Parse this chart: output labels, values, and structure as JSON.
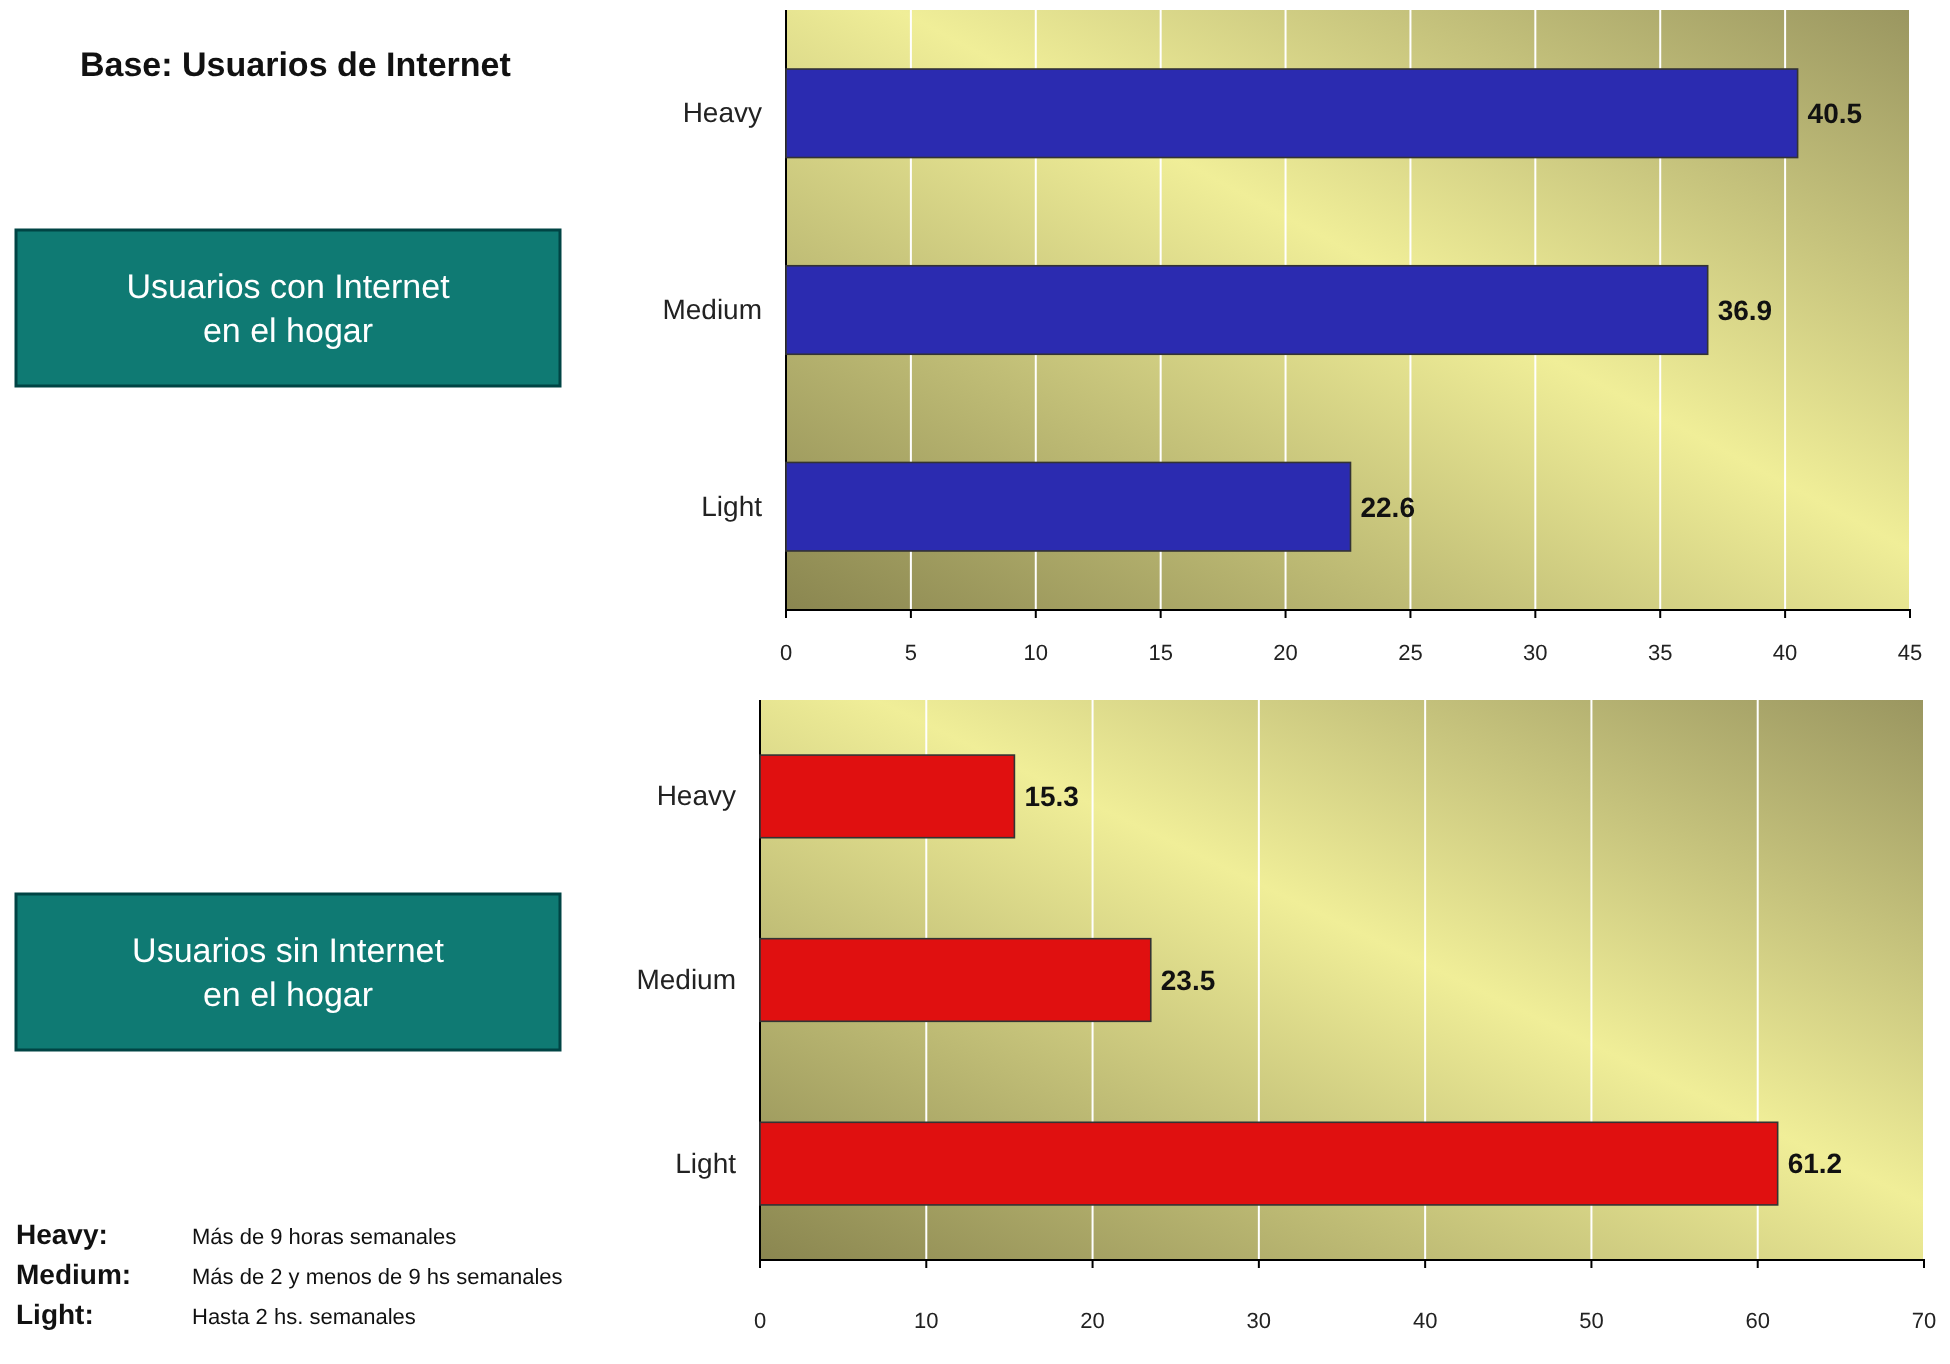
{
  "chart_data": [
    {
      "type": "bar",
      "title": "Base: Usuarios de Internet",
      "ylabel": "Usuarios con Internet en el hogar",
      "orientation": "horizontal",
      "categories": [
        "Heavy",
        "Medium",
        "Light"
      ],
      "series": [
        {
          "color": "#2b2bb0",
          "values": [
            40.5,
            36.9,
            22.6
          ]
        }
      ],
      "xlim": [
        0,
        45
      ],
      "xticks": [
        0,
        5,
        10,
        15,
        20,
        25,
        30,
        35,
        40,
        45
      ],
      "grid": "x",
      "data_labels": true
    },
    {
      "type": "bar",
      "ylabel": "Usuarios sin Internet en el hogar",
      "orientation": "horizontal",
      "categories": [
        "Heavy",
        "Medium",
        "Light"
      ],
      "series": [
        {
          "color": "#e01010",
          "values": [
            15.3,
            23.5,
            61.2
          ]
        }
      ],
      "xlim": [
        0,
        70
      ],
      "xticks": [
        0,
        10,
        20,
        30,
        40,
        50,
        60,
        70
      ],
      "grid": "x",
      "data_labels": true,
      "annotations": [
        "Heavy: Más de 9 horas semanales",
        "Medium: Más de 2 y menos de 9 hs semanales",
        "Light: Hasta 2 hs. semanales"
      ]
    }
  ]
}
